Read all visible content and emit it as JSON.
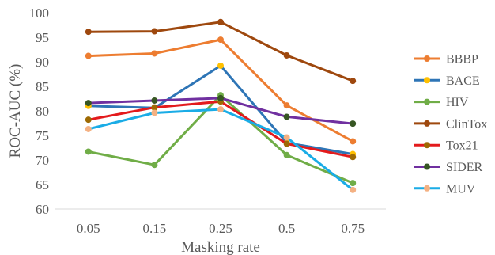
{
  "chart_data": {
    "type": "line",
    "title": "",
    "xlabel": "Masking rate",
    "ylabel": "ROC-AUC (%)",
    "categories": [
      "0.05",
      "0.15",
      "0.25",
      "0.5",
      "0.75"
    ],
    "ylim": [
      60,
      100
    ],
    "yticks": [
      60,
      65,
      70,
      75,
      80,
      85,
      90,
      95,
      100
    ],
    "grid": false,
    "legend": "right",
    "series": [
      {
        "name": "BBBP",
        "color": "#ED7D31",
        "marker": "#ED7D31",
        "values": [
          91.2,
          91.7,
          94.5,
          81.1,
          73.8
        ]
      },
      {
        "name": "BACE",
        "color": "#2E75B6",
        "marker": "#FFC000",
        "values": [
          81.0,
          80.6,
          89.2,
          73.5,
          71.2
        ]
      },
      {
        "name": "HIV",
        "color": "#70AD47",
        "marker": "#70AD47",
        "values": [
          71.7,
          69.0,
          83.2,
          71.0,
          65.3
        ]
      },
      {
        "name": "ClinTox",
        "color": "#9E480E",
        "marker": "#9E480E",
        "values": [
          96.1,
          96.2,
          98.1,
          91.3,
          86.1
        ]
      },
      {
        "name": "Tox21",
        "color": "#E31A1C",
        "marker": "#9E6A03",
        "values": [
          78.2,
          80.7,
          81.9,
          73.3,
          70.6
        ]
      },
      {
        "name": "SIDER",
        "color": "#7030A0",
        "marker": "#375623",
        "values": [
          81.6,
          82.1,
          82.6,
          78.8,
          77.4
        ]
      },
      {
        "name": "MUV",
        "color": "#1AACE6",
        "marker": "#F4B183",
        "values": [
          76.3,
          79.6,
          80.3,
          74.6,
          63.9
        ]
      }
    ]
  }
}
